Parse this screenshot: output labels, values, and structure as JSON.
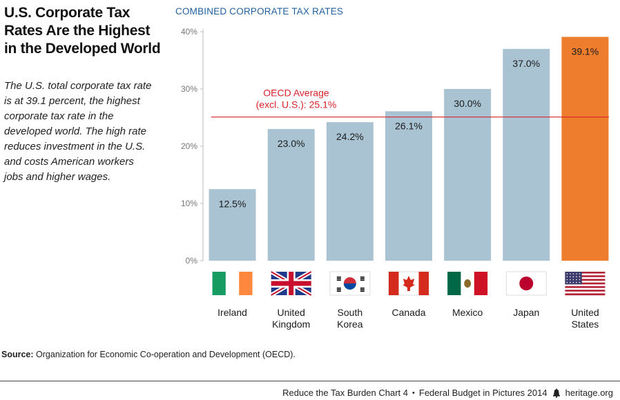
{
  "title": "U.S. Corporate Tax Rates Are the Highest in the Developed World",
  "subtitle": "The U.S. total corporate tax rate is at 39.1 percent, the highest corporate tax rate in the developed world. The high rate reduces investment in the U.S. and costs American workers jobs and higher wages.",
  "source_label": "Source:",
  "source_text": "Organization for Economic Co-operation and Development (OECD).",
  "footer": {
    "chart_ref": "Reduce the Tax Burden Chart 4",
    "separator": "•",
    "publication": "Federal Budget in Pictures 2014",
    "site": "heritage.org"
  },
  "colors": {
    "bar": "#a9c3d3",
    "highlight_bar": "#ef7d2e",
    "reference_line": "#d8232a",
    "chart_title": "#1f5f9e"
  },
  "chart_data": {
    "type": "bar",
    "title": "COMBINED CORPORATE TAX RATES",
    "categories": [
      "Ireland",
      "United Kingdom",
      "South Korea",
      "Canada",
      "Mexico",
      "Japan",
      "United States"
    ],
    "category_lines": [
      [
        "Ireland"
      ],
      [
        "United",
        "Kingdom"
      ],
      [
        "South",
        "Korea"
      ],
      [
        "Canada"
      ],
      [
        "Mexico"
      ],
      [
        "Japan"
      ],
      [
        "United",
        "States"
      ]
    ],
    "flag_icons": [
      "ireland-flag-icon",
      "uk-flag-icon",
      "south-korea-flag-icon",
      "canada-flag-icon",
      "mexico-flag-icon",
      "japan-flag-icon",
      "usa-flag-icon"
    ],
    "values": [
      12.5,
      23.0,
      24.2,
      26.1,
      30.0,
      37.0,
      39.1
    ],
    "value_labels": [
      "12.5%",
      "23.0%",
      "24.2%",
      "26.1%",
      "30.0%",
      "37.0%",
      "39.1%"
    ],
    "highlight_index": 6,
    "ylim": [
      0,
      40
    ],
    "yticks": [
      0,
      10,
      20,
      30,
      40
    ],
    "ytick_labels": [
      "0%",
      "10%",
      "20%",
      "30%",
      "40%"
    ],
    "grid": false,
    "reference_line": {
      "value": 25.1,
      "label_lines": [
        "OECD Average",
        "(excl. U.S.): 25.1%"
      ]
    }
  }
}
